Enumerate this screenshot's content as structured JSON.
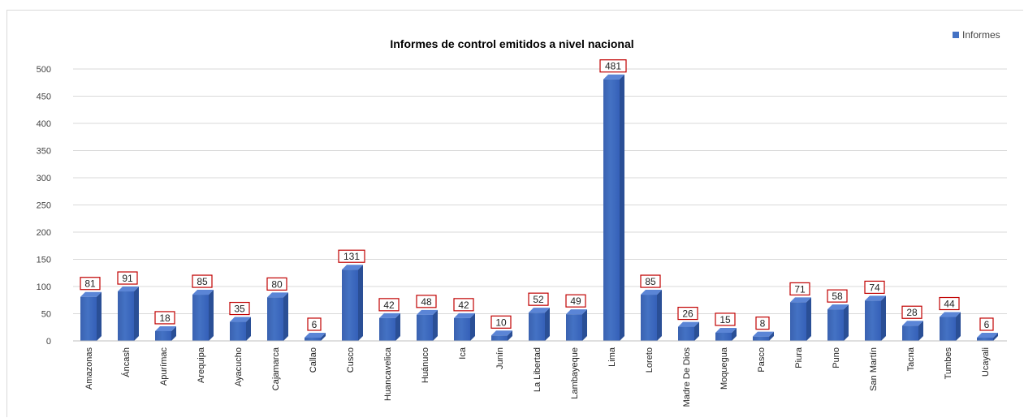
{
  "chart_data": {
    "type": "bar",
    "title": "Informes de control emitidos a nivel nacional",
    "xlabel": "",
    "ylabel": "",
    "ylim": [
      0,
      500
    ],
    "yticks": [
      0,
      50,
      100,
      150,
      200,
      250,
      300,
      350,
      400,
      450,
      500
    ],
    "grid": true,
    "legend_position": "top-right",
    "categories": [
      "Amazonas",
      "Áncash",
      "Apurímac",
      "Arequipa",
      "Ayacucho",
      "Cajamarca",
      "Callao",
      "Cusco",
      "Huancavelica",
      "Huánuco",
      "Ica",
      "Junín",
      "La Libertad",
      "Lambayeque",
      "Lima",
      "Loreto",
      "Madre De Dios",
      "Moquegua",
      "Pasco",
      "Piura",
      "Puno",
      "San Martín",
      "Tacna",
      "Tumbes",
      "Ucayali"
    ],
    "series": [
      {
        "name": "Informes",
        "color": "#4472c4",
        "values": [
          81,
          91,
          18,
          85,
          35,
          80,
          6,
          131,
          42,
          48,
          42,
          10,
          52,
          49,
          481,
          85,
          26,
          15,
          8,
          71,
          58,
          74,
          28,
          44,
          6
        ]
      }
    ],
    "colors": {
      "bar": "#4472c4",
      "bar_dark": "#2a4f96",
      "label_border": "#c00000",
      "grid": "#d9d9d9"
    }
  }
}
